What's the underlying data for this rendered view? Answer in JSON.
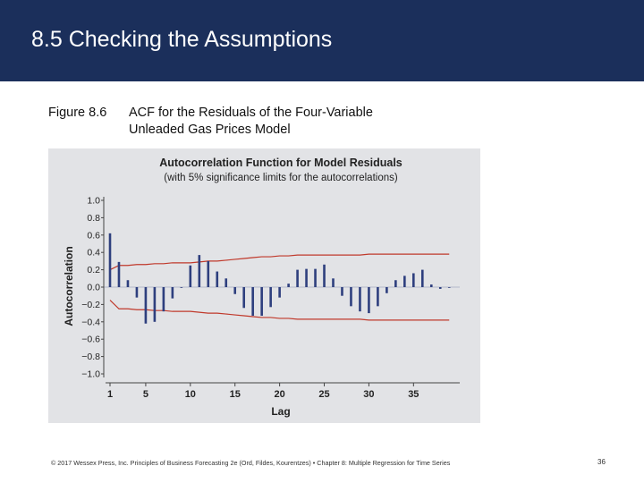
{
  "slide": {
    "title": "8.5 Checking the Assumptions",
    "figure_number": "Figure 8.6",
    "figure_caption_line1": "ACF for the Residuals of the Four-Variable",
    "figure_caption_line2": "Unleaded Gas Prices Model",
    "footer": "© 2017 Wessex Press, Inc. Principles of Business Forecasting 2e (Ord, Fildes, Kourentzes) • Chapter 8: Multiple Regression for Time Series",
    "page_number": "36"
  },
  "colors": {
    "header_bg": "#1b2f5b",
    "bar": "#2e3f7e",
    "limit_line": "#c0392b",
    "panel_bg": "#e2e3e6"
  },
  "chart_data": {
    "type": "bar",
    "title": "Autocorrelation Function for Model Residuals",
    "subtitle": "(with 5% significance limits for the autocorrelations)",
    "xlabel": "Lag",
    "ylabel": "Autocorrelation",
    "ylim": [
      -1.0,
      1.0
    ],
    "xlim": [
      1,
      39
    ],
    "y_ticks": [
      "1.0",
      "0.8",
      "0.6",
      "0.4",
      "0.2",
      "0.0",
      "-0.2",
      "-0.4",
      "-0.6",
      "-0.8",
      "-1.0"
    ],
    "x_ticks": [
      1,
      5,
      10,
      15,
      20,
      25,
      30,
      35
    ],
    "lags": [
      1,
      2,
      3,
      4,
      5,
      6,
      7,
      8,
      9,
      10,
      11,
      12,
      13,
      14,
      15,
      16,
      17,
      18,
      19,
      20,
      21,
      22,
      23,
      24,
      25,
      26,
      27,
      28,
      29,
      30,
      31,
      32,
      33,
      34,
      35,
      36,
      37,
      38,
      39
    ],
    "values": [
      0.62,
      0.29,
      0.08,
      -0.12,
      -0.42,
      -0.4,
      -0.28,
      -0.13,
      0.0,
      0.25,
      0.37,
      0.3,
      0.18,
      0.1,
      -0.08,
      -0.24,
      -0.33,
      -0.33,
      -0.23,
      -0.12,
      0.04,
      0.2,
      0.21,
      0.21,
      0.26,
      0.1,
      -0.1,
      -0.22,
      -0.28,
      -0.3,
      -0.22,
      -0.07,
      0.08,
      0.13,
      0.16,
      0.2,
      0.03,
      -0.02,
      0.0
    ],
    "upper_limit": [
      0.2,
      0.25,
      0.25,
      0.26,
      0.26,
      0.27,
      0.27,
      0.28,
      0.28,
      0.28,
      0.29,
      0.3,
      0.3,
      0.31,
      0.32,
      0.33,
      0.34,
      0.35,
      0.35,
      0.36,
      0.36,
      0.37,
      0.37,
      0.37,
      0.37,
      0.37,
      0.37,
      0.37,
      0.37,
      0.38,
      0.38,
      0.38,
      0.38,
      0.38,
      0.38,
      0.38,
      0.38,
      0.38,
      0.38
    ],
    "lower_limit": [
      -0.15,
      -0.25,
      -0.25,
      -0.26,
      -0.26,
      -0.27,
      -0.27,
      -0.28,
      -0.28,
      -0.28,
      -0.29,
      -0.3,
      -0.3,
      -0.31,
      -0.32,
      -0.33,
      -0.34,
      -0.35,
      -0.35,
      -0.36,
      -0.36,
      -0.37,
      -0.37,
      -0.37,
      -0.37,
      -0.37,
      -0.37,
      -0.37,
      -0.37,
      -0.38,
      -0.38,
      -0.38,
      -0.38,
      -0.38,
      -0.38,
      -0.38,
      -0.38,
      -0.38,
      -0.38
    ]
  }
}
